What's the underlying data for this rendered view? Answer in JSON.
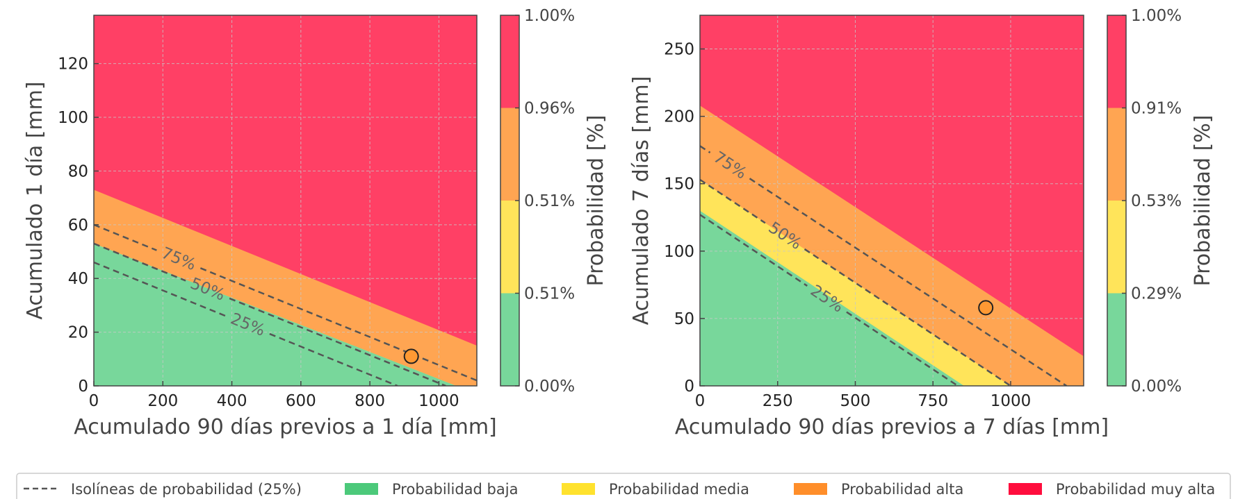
{
  "chart_data": [
    {
      "type": "contour",
      "xlabel": "Acumulado 90 días previos a 1 día [mm]",
      "ylabel": "Acumulado 1 día [mm]",
      "xlim": [
        0,
        1110
      ],
      "ylim": [
        0,
        138
      ],
      "xticks": [
        0,
        200,
        400,
        600,
        800,
        1000
      ],
      "yticks": [
        0,
        20,
        40,
        60,
        80,
        100,
        120
      ],
      "grid": true,
      "regions": [
        {
          "name": "Probabilidad baja",
          "color": "#78D79B",
          "boundary_top": [
            [
              0,
              53
            ],
            [
              1050,
              0
            ]
          ]
        },
        {
          "name": "Probabilidad media",
          "color": "#FFE45A",
          "boundary_top": [
            [
              0,
              53
            ],
            [
              1050,
              0
            ]
          ]
        },
        {
          "name": "Probabilidad alta",
          "color": "#FFA552",
          "boundary_top": [
            [
              0,
              73
            ],
            [
              1110,
              15
            ]
          ]
        },
        {
          "name": "Probabilidad muy alta",
          "color": "#FF4065",
          "boundary_top": [
            [
              0,
              138
            ],
            [
              1110,
              138
            ]
          ]
        }
      ],
      "isolines": [
        {
          "label": "25%",
          "points": [
            [
              0,
              46
            ],
            [
              880,
              0
            ]
          ],
          "label_at": [
            447,
            23
          ]
        },
        {
          "label": "50%",
          "points": [
            [
              0,
              53
            ],
            [
              1020,
              0
            ]
          ],
          "label_at": [
            330,
            36
          ]
        },
        {
          "label": "75%",
          "points": [
            [
              0,
              60
            ],
            [
              1110,
              2
            ]
          ],
          "label_at": [
            245,
            47
          ]
        }
      ],
      "marker": {
        "x": 920,
        "y": 11,
        "color": "#FF9933"
      },
      "colorbar": {
        "label": "Probabilidad [%]",
        "ticks": [
          "1.00%",
          "0.96%",
          "0.51%",
          "0.51%",
          "0.00%"
        ],
        "bands": [
          "#78D79B",
          "#FFE45A",
          "#FFA552",
          "#FF4065"
        ]
      }
    },
    {
      "type": "contour",
      "xlabel": "Acumulado 90 días previos a 7 días [mm]",
      "ylabel": "Acumulado 7 días [mm]",
      "xlim": [
        0,
        1235
      ],
      "ylim": [
        0,
        275
      ],
      "xticks": [
        0,
        250,
        500,
        750,
        1000
      ],
      "yticks": [
        0,
        50,
        100,
        150,
        200,
        250
      ],
      "grid": true,
      "regions": [
        {
          "name": "Probabilidad baja",
          "color": "#78D79B",
          "boundary_top": [
            [
              0,
              130
            ],
            [
              850,
              0
            ]
          ]
        },
        {
          "name": "Probabilidad media",
          "color": "#FFE45A",
          "boundary_top": [
            [
              0,
              153
            ],
            [
              1000,
              0
            ]
          ]
        },
        {
          "name": "Probabilidad alta",
          "color": "#FFA552",
          "boundary_top": [
            [
              0,
              208
            ],
            [
              1235,
              22
            ]
          ]
        },
        {
          "name": "Probabilidad muy alta",
          "color": "#FF4065",
          "boundary_top": [
            [
              0,
              275
            ],
            [
              1235,
              275
            ]
          ]
        }
      ],
      "isolines": [
        {
          "label": "25%",
          "points": [
            [
              0,
              127
            ],
            [
              830,
              0
            ]
          ],
          "label_at": [
            410,
            65
          ]
        },
        {
          "label": "50%",
          "points": [
            [
              0,
              153
            ],
            [
              1000,
              0
            ]
          ],
          "label_at": [
            270,
            110
          ]
        },
        {
          "label": "75%",
          "points": [
            [
              0,
              178
            ],
            [
              1180,
              0
            ]
          ],
          "label_at": [
            95,
            163
          ]
        }
      ],
      "marker": {
        "x": 920,
        "y": 58,
        "color": "#FF9933"
      },
      "colorbar": {
        "label": "Probabilidad [%]",
        "ticks": [
          "1.00%",
          "0.91%",
          "0.53%",
          "0.29%",
          "0.00%"
        ],
        "bands": [
          "#78D79B",
          "#FFE45A",
          "#FFA552",
          "#FF4065"
        ]
      }
    }
  ],
  "legend": {
    "items": [
      {
        "label": "Isolíneas de probabilidad (25%)",
        "kind": "dash",
        "color": "#555555"
      },
      {
        "label": "Probabilidad baja",
        "kind": "patch",
        "color": "#4CC97A"
      },
      {
        "label": "Probabilidad media",
        "kind": "patch",
        "color": "#FFE22E"
      },
      {
        "label": "Probabilidad alta",
        "kind": "patch",
        "color": "#FF8E2A"
      },
      {
        "label": "Probabilidad muy alta",
        "kind": "patch",
        "color": "#FF0D3D"
      }
    ]
  }
}
